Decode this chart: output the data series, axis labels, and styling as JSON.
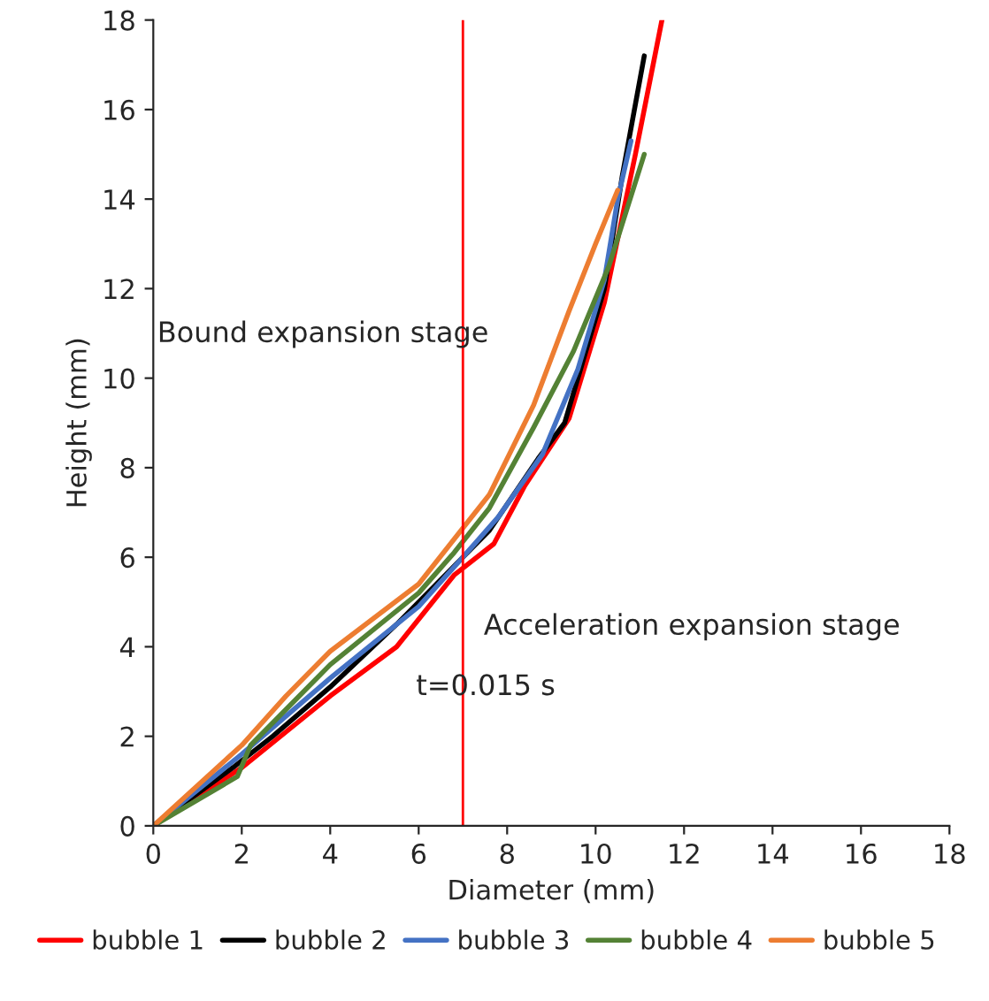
{
  "chart_data": {
    "type": "line",
    "xlabel": "Diameter (mm)",
    "ylabel": "Height (mm)",
    "xlim": [
      0,
      18
    ],
    "ylim": [
      0,
      18
    ],
    "xticks": [
      0,
      2,
      4,
      6,
      8,
      10,
      12,
      14,
      16,
      18
    ],
    "yticks": [
      0,
      2,
      4,
      6,
      8,
      10,
      12,
      14,
      16,
      18
    ],
    "grid": false,
    "legend": "bottom",
    "marker": "none",
    "line_style": "solid",
    "series": [
      {
        "name": "bubble 1",
        "color": "#ff0000",
        "x": [
          0,
          2,
          4,
          5.5,
          6.8,
          7.7,
          8.4,
          9.4,
          10.2,
          10.9,
          11.5
        ],
        "values": [
          0,
          1.3,
          2.9,
          4.0,
          5.6,
          6.3,
          7.6,
          9.1,
          11.7,
          15.0,
          18.0
        ]
      },
      {
        "name": "bubble 2",
        "color": "#000000",
        "x": [
          0,
          1.8,
          2.7,
          4,
          5.5,
          7,
          7.6,
          8.7,
          9.3,
          10.2,
          10.6,
          11.1
        ],
        "values": [
          0,
          1.3,
          2.0,
          3.1,
          4.5,
          6.0,
          6.6,
          8.2,
          9.0,
          12.0,
          14.5,
          17.2
        ]
      },
      {
        "name": "bubble 3",
        "color": "#4472c4",
        "x": [
          0,
          2,
          4,
          6,
          7,
          7.8,
          8.8,
          9.6,
          10.2,
          10.5,
          10.8
        ],
        "values": [
          0,
          1.6,
          3.3,
          4.9,
          6.0,
          6.9,
          8.3,
          10.2,
          12.2,
          14.0,
          15.3
        ]
      },
      {
        "name": "bubble 4",
        "color": "#548235",
        "x": [
          0,
          1.9,
          2.2,
          4,
          6,
          6.8,
          7.6,
          8.6,
          9.5,
          10.3,
          11.1
        ],
        "values": [
          0,
          1.1,
          1.8,
          3.6,
          5.2,
          6.1,
          7.1,
          8.9,
          10.6,
          12.5,
          15.0
        ]
      },
      {
        "name": "bubble 5",
        "color": "#ed7d31",
        "x": [
          0,
          2,
          3,
          4,
          6,
          7.6,
          8.6,
          9.4,
          10,
          10.5
        ],
        "values": [
          0,
          1.8,
          2.9,
          3.9,
          5.4,
          7.4,
          9.4,
          11.5,
          13.0,
          14.2
        ]
      }
    ],
    "ref_lines": [
      {
        "axis": "x",
        "value": 7,
        "color": "#ff0000",
        "line_style": "solid"
      }
    ],
    "annotations": [
      "Bound expansion stage",
      "Acceleration expansion stage",
      "t=0.015 s"
    ]
  }
}
